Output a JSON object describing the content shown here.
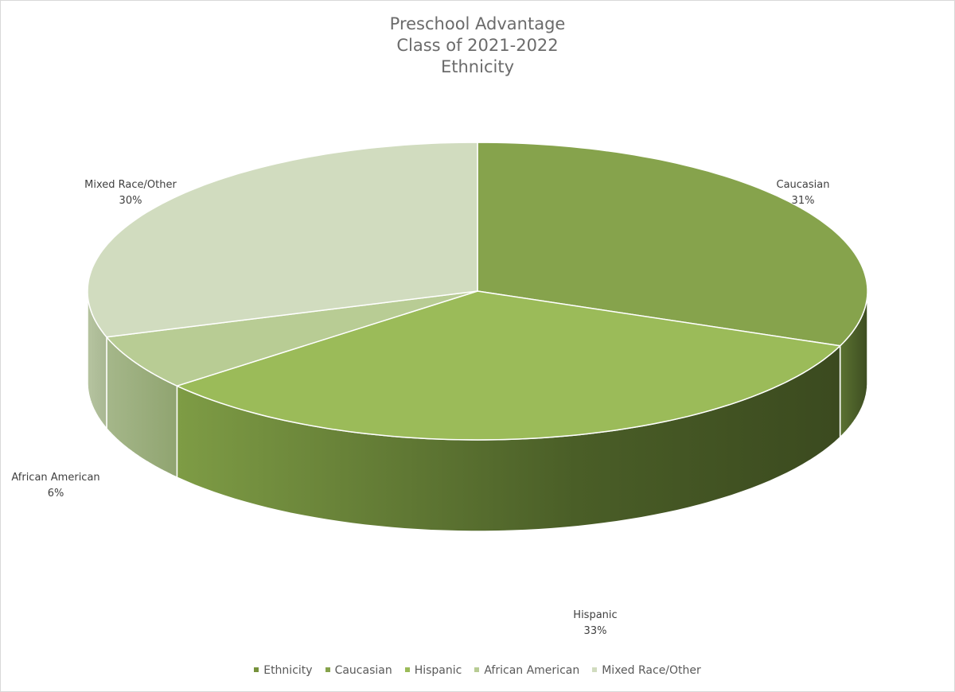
{
  "chart_data": {
    "type": "pie",
    "title_lines": [
      "Preschool Advantage",
      "Class of 2021-2022",
      "Ethnicity"
    ],
    "series_name": "Ethnicity",
    "categories": [
      "Caucasian",
      "Hispanic",
      "African American",
      "Mixed Race/Other"
    ],
    "values": [
      31,
      33,
      6,
      30
    ],
    "data_labels": [
      {
        "name": "Caucasian",
        "pct": "31%"
      },
      {
        "name": "Hispanic",
        "pct": "33%"
      },
      {
        "name": "African American",
        "pct": "6%"
      },
      {
        "name": "Mixed Race/Other",
        "pct": "30%"
      }
    ],
    "colors": [
      "#86a34c",
      "#9bbb59",
      "#b8cc94",
      "#d1dcbf"
    ],
    "side_colors": [
      "#5b7231",
      "#4f6529",
      "#9aab7c",
      "#aebb98"
    ],
    "legend": {
      "position": "bottom",
      "entries": [
        {
          "label": "Ethnicity",
          "color": "#76923c"
        },
        {
          "label": "Caucasian",
          "color": "#86a34c"
        },
        {
          "label": "Hispanic",
          "color": "#9bbb59"
        },
        {
          "label": "African American",
          "color": "#b8cc94"
        },
        {
          "label": "Mixed Race/Other",
          "color": "#d1dcbf"
        }
      ]
    },
    "style": "3d-pie"
  }
}
